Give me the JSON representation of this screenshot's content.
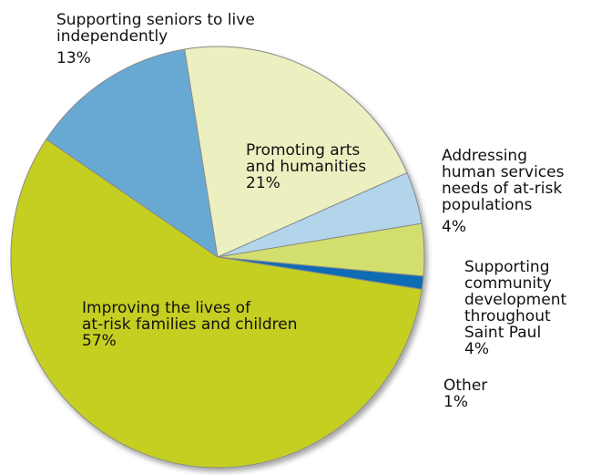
{
  "chart_data": {
    "type": "pie",
    "title": "",
    "slices": [
      {
        "label": "Supporting seniors to live independently",
        "value": 13,
        "color": "#67a9d4"
      },
      {
        "label": "Promoting arts and humanities",
        "value": 21,
        "color": "#ecefc0"
      },
      {
        "label": "Addressing human services needs of at-risk populations",
        "value": 4,
        "color": "#b3d5ec"
      },
      {
        "label": "Supporting community development throughout Saint Paul",
        "value": 4,
        "color": "#d2df6e"
      },
      {
        "label": "Other",
        "value": 1,
        "color": "#0d6cb3"
      },
      {
        "label": "Improving the lives of at-risk families and children",
        "value": 57,
        "color": "#c4cf24"
      }
    ],
    "labels": {
      "seniors": {
        "lines": [
          "Supporting seniors to live",
          "independently"
        ],
        "pct": "13%"
      },
      "arts": {
        "lines": [
          "Promoting arts",
          "and humanities"
        ],
        "pct": "21%"
      },
      "human": {
        "lines": [
          "Addressing",
          "human services",
          "needs of at-risk",
          "populations"
        ],
        "pct": "4%"
      },
      "community": {
        "lines": [
          "Supporting",
          "community",
          "development",
          "throughout",
          "Saint Paul"
        ],
        "pct": "4%"
      },
      "other": {
        "lines": [
          "Other"
        ],
        "pct": "1%"
      },
      "families": {
        "lines": [
          "Improving the lives of",
          "at-risk families and children"
        ],
        "pct": "57%"
      }
    }
  }
}
